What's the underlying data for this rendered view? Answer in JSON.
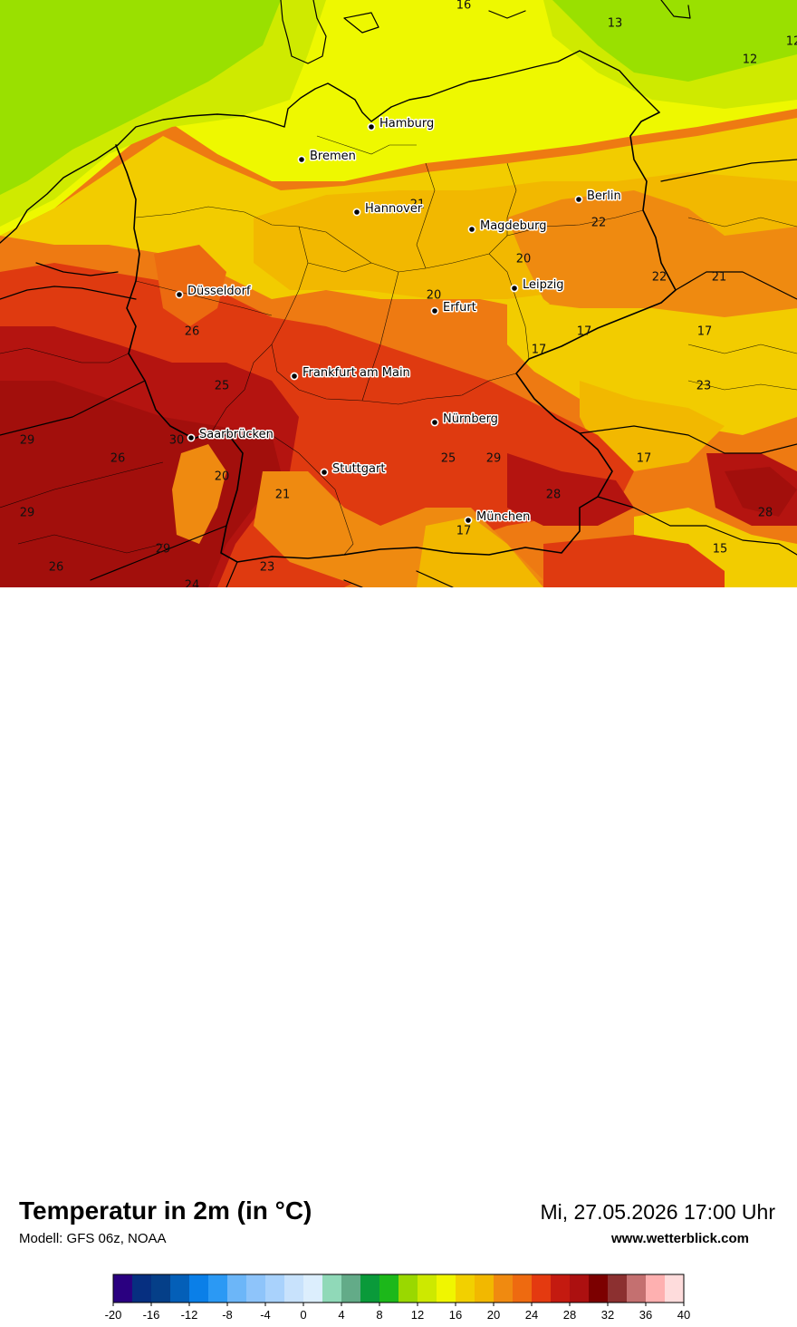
{
  "title": "Temperatur in 2m (in °C)",
  "model": "Modell: GFS 06z, NOAA",
  "datetime": "Mi, 27.05.2026 17:00 Uhr",
  "website": "www.wetterblick.com",
  "cities": [
    {
      "name": "Hamburg"
    },
    {
      "name": "Bremen"
    },
    {
      "name": "Hannover"
    },
    {
      "name": "Berlin"
    },
    {
      "name": "Magdeburg"
    },
    {
      "name": "Leipzig"
    },
    {
      "name": "Düsseldorf"
    },
    {
      "name": "Erfurt"
    },
    {
      "name": "Frankfurt am Main"
    },
    {
      "name": "Nürnberg"
    },
    {
      "name": "Saarbrücken"
    },
    {
      "name": "Stuttgart"
    },
    {
      "name": "München"
    }
  ],
  "temperature_labels": [
    "16",
    "13",
    "12",
    "12",
    "21",
    "22",
    "20",
    "20",
    "22",
    "21",
    "17",
    "17",
    "17",
    "26",
    "25",
    "23",
    "17",
    "29",
    "26",
    "30",
    "20",
    "21",
    "25",
    "29",
    "28",
    "29",
    "29",
    "17",
    "28",
    "15",
    "26",
    "24",
    "23"
  ],
  "legend": {
    "ticks": [
      "-20",
      "-16",
      "-12",
      "-8",
      "-4",
      "0",
      "4",
      "8",
      "12",
      "16",
      "20",
      "24",
      "28",
      "32",
      "36",
      "40"
    ],
    "colors": [
      "#2a0080",
      "#062f80",
      "#053f88",
      "#045fb8",
      "#0a7fe8",
      "#2b99f4",
      "#6cb6f8",
      "#8ec4fa",
      "#a9d2fc",
      "#c8e2fc",
      "#dceefd",
      "#90d9b8",
      "#63ab88",
      "#0a9a3a",
      "#1cb81a",
      "#9ad800",
      "#cde900",
      "#f0f600",
      "#f2d000",
      "#f2b800",
      "#f08a10",
      "#ee6a10",
      "#e43a10",
      "#c41a10",
      "#ac1010",
      "#7c0000",
      "#8c3030",
      "#c47070",
      "#feb0b0",
      "#fedcdc"
    ]
  },
  "colors": {
    "green": "#9ae000",
    "light_green": "#cfea00",
    "yellow": "#eef800",
    "gold": "#f2cc00",
    "amber": "#f2b800",
    "orange": "#ef8a10",
    "dark_orange": "#ec6a10",
    "red": "#df3a10",
    "deep_red": "#b41410",
    "darker_red": "#a20f0c"
  }
}
